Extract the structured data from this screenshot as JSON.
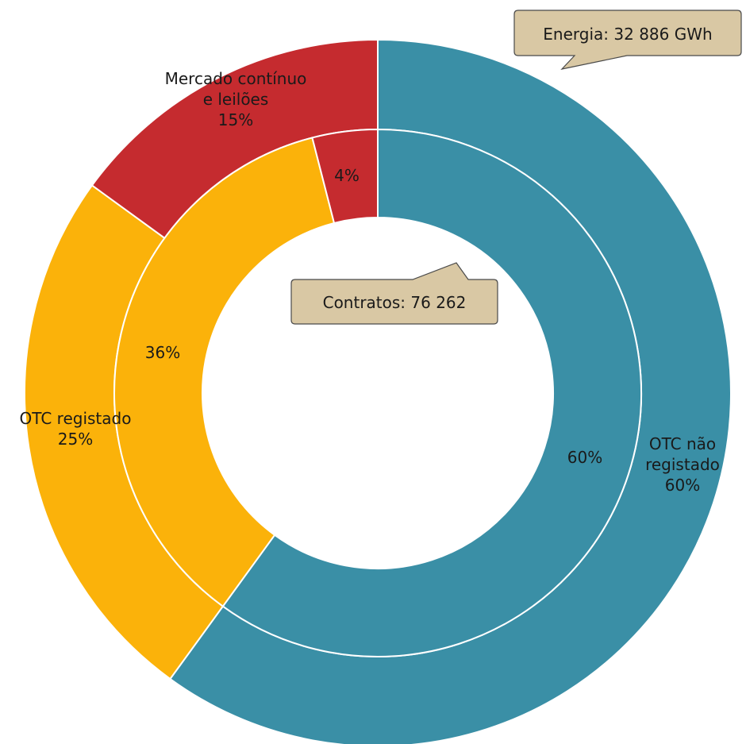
{
  "chart_data": {
    "type": "pie",
    "style": "nested-donut",
    "rings": [
      {
        "ring": "outer",
        "callout": "Energia: 32 886 GWh",
        "slices": [
          {
            "name": "OTC não registado",
            "value": 60,
            "label_lines": [
              "OTC não",
              "registado",
              "60%"
            ],
            "color": "#3a8fa6"
          },
          {
            "name": "OTC registado",
            "value": 25,
            "label_lines": [
              "OTC registado",
              "25%"
            ],
            "color": "#fbb20a"
          },
          {
            "name": "Mercado contínuo e leilões",
            "value": 15,
            "label_lines": [
              "Mercado contínuo",
              "e leilões",
              "15%"
            ],
            "color": "#c52b2f"
          }
        ]
      },
      {
        "ring": "inner",
        "callout": "Contratos: 76 262",
        "slices": [
          {
            "name": "OTC não registado",
            "value": 60,
            "label_lines": [
              "60%"
            ],
            "color": "#3a8fa6"
          },
          {
            "name": "OTC registado",
            "value": 36,
            "label_lines": [
              "36%"
            ],
            "color": "#fbb20a"
          },
          {
            "name": "Mercado contínuo e leilões",
            "value": 4,
            "label_lines": [
              "4%"
            ],
            "color": "#c52b2f"
          }
        ]
      }
    ],
    "callout_color": "#d9c8a4",
    "start_angle_deg": 0,
    "direction": "clockwise"
  }
}
